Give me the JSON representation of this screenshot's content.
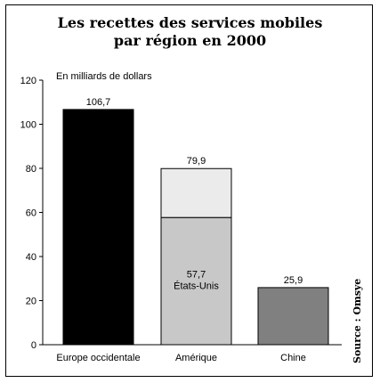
{
  "title": [
    "Les recettes des services mobiles",
    "par région en 2000"
  ],
  "source": "Source : Omsye",
  "chart_data": {
    "type": "bar",
    "stacked": true,
    "title": "Les recettes des services mobiles par région en 2000",
    "ylabel": "En milliards de dollars",
    "xlabel": "",
    "ylim": [
      0,
      120
    ],
    "yticks": [
      0,
      20,
      40,
      60,
      80,
      100,
      120
    ],
    "categories": [
      "Europe occidentale",
      "Amérique",
      "Chine"
    ],
    "bars": [
      {
        "category": "Europe occidentale",
        "total": 106.7,
        "total_label": "106,7",
        "color": "#000000",
        "segments": []
      },
      {
        "category": "Amérique",
        "total": 79.9,
        "total_label": "79,9",
        "color": "#ebebeb",
        "segments": [
          {
            "name": "États-Unis",
            "value": 57.7,
            "value_label": "57,7",
            "color": "#c8c8c8"
          },
          {
            "name": "",
            "value": 22.2,
            "value_label": "",
            "color": "#ebebeb"
          }
        ]
      },
      {
        "category": "Chine",
        "total": 25.9,
        "total_label": "25,9",
        "color": "#808080",
        "segments": []
      }
    ],
    "grid": false,
    "legend": "none"
  }
}
